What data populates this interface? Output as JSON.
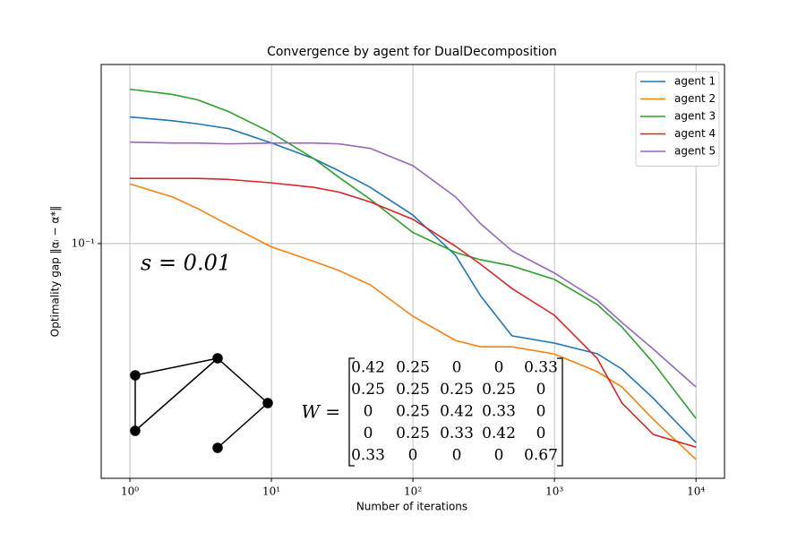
{
  "chart_data": {
    "type": "line",
    "title": "Convergence by agent for DualDecomposition",
    "x_label": "Number of iterations",
    "y_label": "Optimality gap ‖αᵢ − α*‖",
    "x_log": true,
    "y_log": true,
    "grid": true,
    "legend": "upper right",
    "x": [
      1,
      2,
      3,
      5,
      10,
      20,
      30,
      50,
      100,
      200,
      300,
      500,
      1000,
      2000,
      3000,
      5000,
      10000
    ],
    "series": [
      {
        "name": "agent 1",
        "color": "#1f77b4",
        "values": [
          0.217,
          0.212,
          0.208,
          0.202,
          0.185,
          0.168,
          0.156,
          0.141,
          0.119,
          0.093,
          0.0727,
          0.0569,
          0.0544,
          0.051,
          0.0464,
          0.0388,
          0.0296
        ]
      },
      {
        "name": "agent 2",
        "color": "#ff7f0e",
        "values": [
          0.144,
          0.133,
          0.124,
          0.112,
          0.098,
          0.0896,
          0.0848,
          0.0777,
          0.0641,
          0.0553,
          0.0532,
          0.0532,
          0.0509,
          0.0457,
          0.0416,
          0.0341,
          0.0267
        ]
      },
      {
        "name": "agent 3",
        "color": "#2ca02c",
        "values": [
          0.257,
          0.249,
          0.241,
          0.224,
          0.197,
          0.168,
          0.15,
          0.131,
          0.107,
          0.0947,
          0.0906,
          0.0872,
          0.0803,
          0.0689,
          0.06,
          0.0482,
          0.0343
        ]
      },
      {
        "name": "agent 4",
        "color": "#d62728",
        "values": [
          0.149,
          0.149,
          0.149,
          0.148,
          0.145,
          0.141,
          0.137,
          0.129,
          0.116,
          0.0984,
          0.0882,
          0.076,
          0.0645,
          0.0496,
          0.0377,
          0.0311,
          0.0288
        ]
      },
      {
        "name": "agent 5",
        "color": "#9467bd",
        "values": [
          0.186,
          0.185,
          0.185,
          0.184,
          0.185,
          0.185,
          0.184,
          0.179,
          0.161,
          0.133,
          0.113,
          0.0957,
          0.0835,
          0.0708,
          0.0617,
          0.0524,
          0.0416
        ]
      }
    ],
    "xlim": [
      0.627,
      15900
    ],
    "ylim": [
      0.0238,
      0.299
    ],
    "xticks": [
      {
        "value": 1,
        "label": "10⁰"
      },
      {
        "value": 10,
        "label": "10¹"
      },
      {
        "value": 100,
        "label": "10²"
      },
      {
        "value": 1000,
        "label": "10³"
      },
      {
        "value": 10000,
        "label": "10⁴"
      }
    ],
    "yticks": [
      {
        "value": 0.1,
        "label": "10⁻¹"
      }
    ],
    "annotations": {
      "s_label": "s = 0.01",
      "matrix_label": "W =",
      "matrix": [
        [
          0.42,
          0.25,
          0,
          0,
          0.33
        ],
        [
          0.25,
          0.25,
          0.25,
          0.25,
          0
        ],
        [
          0,
          0.25,
          0.42,
          0.33,
          0
        ],
        [
          0,
          0.25,
          0.33,
          0.42,
          0
        ],
        [
          0.33,
          0,
          0,
          0,
          0.67
        ]
      ]
    }
  }
}
